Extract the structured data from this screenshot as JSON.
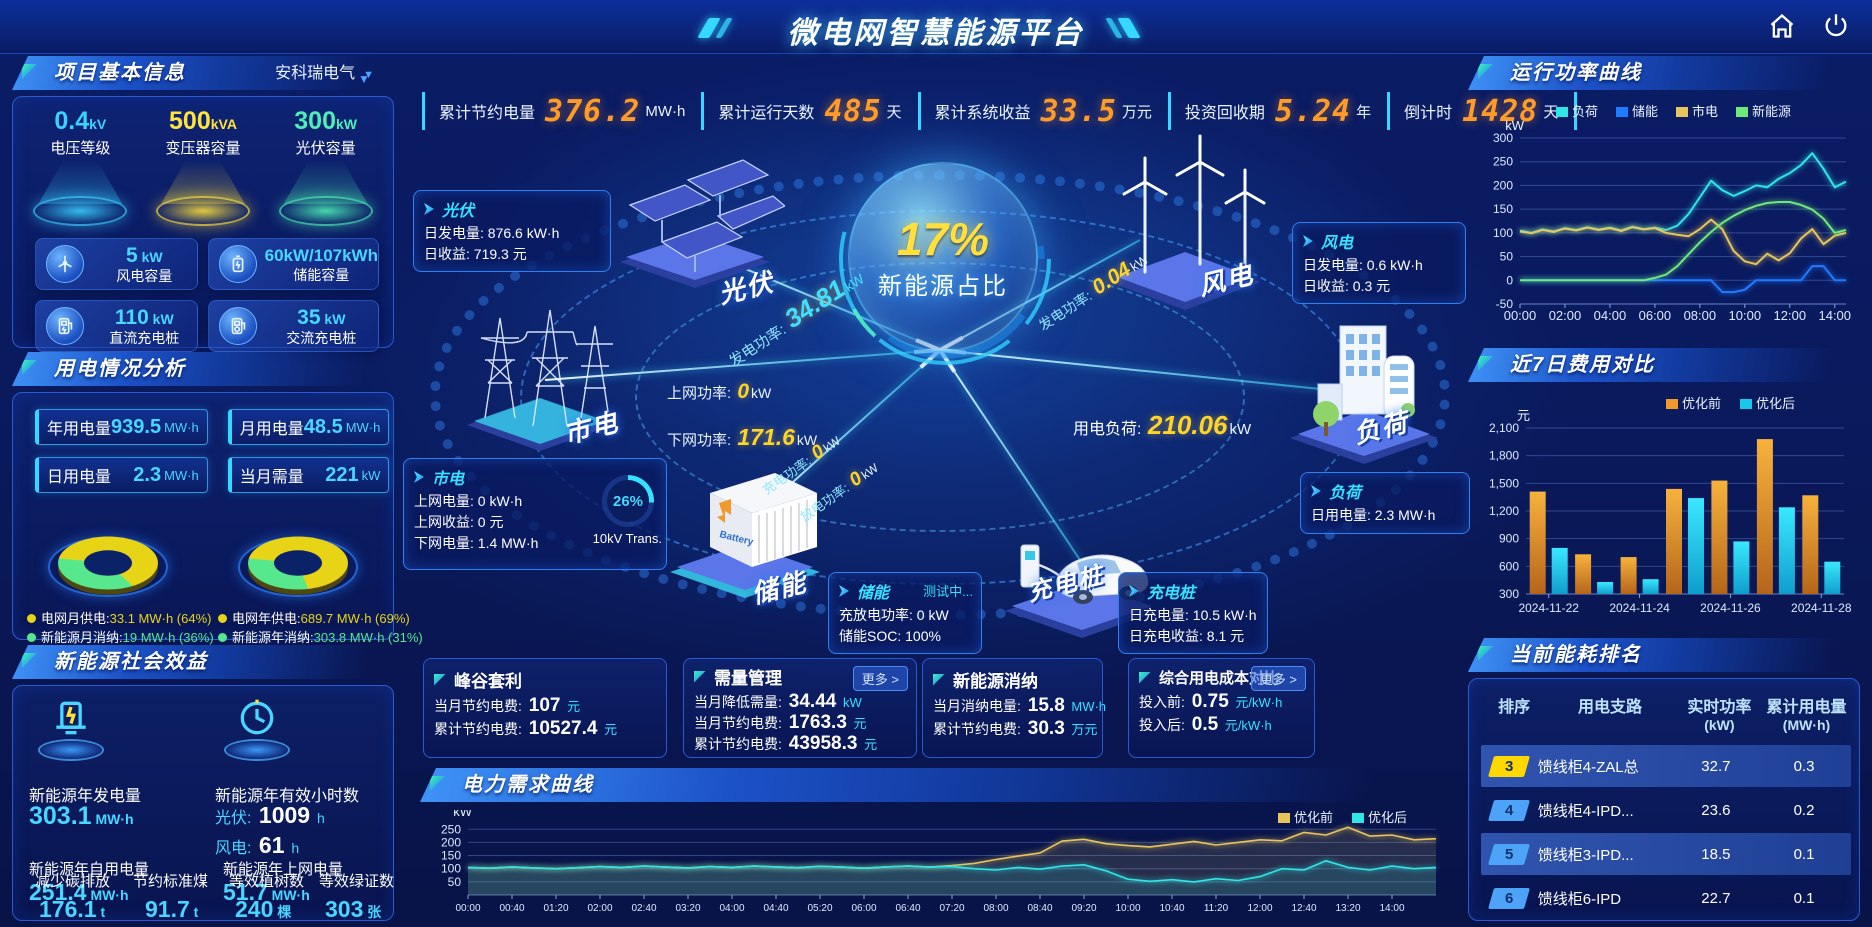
{
  "colors": {
    "accent_cyan": "#35e1ff",
    "value_cyan": "#49d6ff",
    "orange": "#ff9b28",
    "yellow": "#ffd428",
    "green": "#57e88e",
    "blue": "#1f7bff"
  },
  "header": {
    "title": "微电网智慧能源平台",
    "icons": [
      "home-icon",
      "power-icon"
    ],
    "stats": [
      {
        "label": "累计节约电量",
        "value": "376.2",
        "unit": "MW·h"
      },
      {
        "label": "累计运行天数",
        "value": "485",
        "unit": "天"
      },
      {
        "label": "累计系统收益",
        "value": "33.5",
        "unit": "万元"
      },
      {
        "label": "投资回收期",
        "value": "5.24",
        "unit": "年"
      },
      {
        "label": "倒计时",
        "value": "1428",
        "unit": "天"
      }
    ]
  },
  "project": {
    "title": "项目基本信息",
    "company": "安科瑞电气",
    "pedestals": [
      {
        "value": "0.4",
        "unit": "kV",
        "label": "电压等级",
        "color": "#3ad2ff"
      },
      {
        "value": "500",
        "unit": "kVA",
        "label": "变压器容量",
        "color": "#ffe23c"
      },
      {
        "value": "300",
        "unit": "kW",
        "label": "光伏容量",
        "color": "#4df0b6"
      }
    ],
    "cards": [
      {
        "icon": "wind-turbine-icon",
        "value": "5",
        "unit": "kW",
        "label": "风电容量"
      },
      {
        "icon": "battery-icon",
        "value": "60kW/107kWh",
        "unit": "",
        "label": "储能容量"
      },
      {
        "icon": "dc-charger-icon",
        "value": "110",
        "unit": "kW",
        "label": "直流充电桩"
      },
      {
        "icon": "ac-charger-icon",
        "value": "35",
        "unit": "kW",
        "label": "交流充电桩"
      }
    ]
  },
  "usage": {
    "title": "用电情况分析",
    "stats": [
      {
        "label": "年用电量",
        "value": "939.5",
        "unit": "MW·h"
      },
      {
        "label": "月用电量",
        "value": "48.5",
        "unit": "MW·h"
      },
      {
        "label": "日用电量",
        "value": "2.3",
        "unit": "MW·h"
      },
      {
        "label": "当月需量",
        "value": "221",
        "unit": "kW"
      }
    ],
    "donuts": [
      {
        "slices": [
          64,
          36
        ],
        "colors": [
          "#e8d416",
          "#57e88e"
        ],
        "legend": [
          {
            "label": "电网月供电:",
            "value": "33.1 MW·h (64%)",
            "color": "#e8d416"
          },
          {
            "label": "新能源月消纳:",
            "value": "19 MW·h (36%)",
            "color": "#57e88e"
          }
        ]
      },
      {
        "slices": [
          69,
          31
        ],
        "colors": [
          "#e8d416",
          "#57e88e"
        ],
        "legend": [
          {
            "label": "电网年供电:",
            "value": "689.7 MW·h (69%)",
            "color": "#e8d416"
          },
          {
            "label": "新能源年消纳:",
            "value": "303.8 MW·h (31%)",
            "color": "#57e88e"
          }
        ]
      }
    ]
  },
  "benefit": {
    "title": "新能源社会效益",
    "top_items": [
      {
        "icon": "pv-generation-icon",
        "label": "新能源年发电量",
        "value": "303.1",
        "unit": "MW·h"
      },
      {
        "icon": "hours-clock-icon",
        "label": "新能源年有效小时数",
        "rows": [
          {
            "k": "光伏:",
            "v": "1009",
            "u": "h"
          },
          {
            "k": "风电:",
            "v": "61",
            "u": "h"
          }
        ]
      }
    ],
    "bottom_items": [
      {
        "label": "新能源年自用电量",
        "value": "251.4",
        "unit": "MW·h"
      },
      {
        "label": "减少碳排放",
        "value": "176.1",
        "unit": "t"
      },
      {
        "label": "节约标准煤",
        "value": "91.7",
        "unit": "t"
      },
      {
        "label": "新能源年上网电量",
        "value": "51.7",
        "unit": "MW·h"
      },
      {
        "label": "等效植树数",
        "value": "240",
        "unit": "棵"
      },
      {
        "label": "等效绿证数",
        "value": "303",
        "unit": "张"
      }
    ]
  },
  "diagram": {
    "center": {
      "percent": "17%",
      "label": "新能源占比"
    },
    "nodes": [
      {
        "id": "pv",
        "label": "光伏"
      },
      {
        "id": "wind",
        "label": "风电"
      },
      {
        "id": "grid",
        "label": "市电"
      },
      {
        "id": "load",
        "label": "负荷"
      },
      {
        "id": "storage",
        "label": "储能"
      },
      {
        "id": "charger",
        "label": "充电桩"
      }
    ],
    "info_boxes": [
      {
        "id": "pv",
        "title": "光伏",
        "rows": [
          [
            "日发电量:",
            "876.6 kW·h"
          ],
          [
            "日收益:",
            "719.3 元"
          ]
        ]
      },
      {
        "id": "wind",
        "title": "风电",
        "rows": [
          [
            "日发电量:",
            "0.6 kW·h"
          ],
          [
            "日收益:",
            "0.3 元"
          ]
        ]
      },
      {
        "id": "grid",
        "title": "市电",
        "rows": [
          [
            "上网电量:",
            "0 kW·h"
          ],
          [
            "上网收益:",
            "0 元"
          ],
          [
            "下网电量:",
            "1.4 MW·h"
          ]
        ],
        "gauge": {
          "percent": "26%",
          "label": "10kV Trans."
        }
      },
      {
        "id": "load",
        "title": "负荷",
        "rows": [
          [
            "日用电量:",
            "2.3 MW·h"
          ]
        ]
      },
      {
        "id": "storage",
        "title": "储能",
        "badge": "测试中...",
        "rows": [
          [
            "充放电功率:",
            "0 kW"
          ],
          [
            "储能SOC:",
            "100%"
          ]
        ]
      },
      {
        "id": "charger",
        "title": "充电桩",
        "rows": [
          [
            "日充电量:",
            "10.5 kW·h"
          ],
          [
            "日充电收益:",
            "8.1 元"
          ]
        ]
      }
    ],
    "flow_labels": [
      {
        "label": "发电功率:",
        "value": "34.81",
        "unit": "kW"
      },
      {
        "label": "发电功率:",
        "value": "0.04",
        "unit": "kW"
      },
      {
        "label": "上网功率:",
        "value": "0",
        "unit": "kW"
      },
      {
        "label": "下网功率:",
        "value": "171.6",
        "unit": "kW"
      },
      {
        "label": "用电负荷:",
        "value": "210.06",
        "unit": "kW"
      },
      {
        "label": "充电功率:",
        "value": "0",
        "unit": "kW"
      },
      {
        "label": "放电功率:",
        "value": "0",
        "unit": "kW"
      }
    ]
  },
  "kpi_panels": [
    {
      "title": "峰谷套利",
      "more": "",
      "rows": [
        [
          "当月节约电费:",
          "107",
          "元"
        ],
        [
          "累计节约电费:",
          "10527.4",
          "元"
        ]
      ]
    },
    {
      "title": "需量管理",
      "more": "更多 >",
      "rows": [
        [
          "当月降低需量:",
          "34.44",
          "kW"
        ],
        [
          "当月节约电费:",
          "1763.3",
          "元"
        ],
        [
          "累计节约电费:",
          "43958.3",
          "元"
        ]
      ]
    },
    {
      "title": "新能源消纳",
      "more": "",
      "rows": [
        [
          "当月消纳电量:",
          "15.8",
          "MW·h"
        ],
        [
          "累计节约电费:",
          "30.3",
          "万元"
        ]
      ]
    },
    {
      "title": "综合用电成本对比",
      "more": "更多 >",
      "rows": [
        [
          "投入前:",
          "0.75",
          "元/kW·h"
        ],
        [
          "投入后:",
          "0.5",
          "元/kW·h"
        ]
      ]
    }
  ],
  "ranking": {
    "title": "当前能耗排名",
    "columns": [
      {
        "t": "排序",
        "s": ""
      },
      {
        "t": "用电支路",
        "s": ""
      },
      {
        "t": "实时功率",
        "s": "(kW)"
      },
      {
        "t": "累计用电量",
        "s": "(MW·h)"
      }
    ],
    "rows": [
      {
        "rank": "3",
        "badge_color": "#ffd800",
        "branch": "馈线柜4-ZAL总",
        "power": "32.7",
        "energy": "0.3",
        "highlight": true
      },
      {
        "rank": "4",
        "badge_color": "#4da3f8",
        "branch": "馈线柜4-IPD...",
        "power": "23.6",
        "energy": "0.2",
        "highlight": false
      },
      {
        "rank": "5",
        "badge_color": "#4da3f8",
        "branch": "馈线柜3-IPD...",
        "power": "18.5",
        "energy": "0.1",
        "highlight": true
      },
      {
        "rank": "6",
        "badge_color": "#4da3f8",
        "branch": "馈线柜6-IPD",
        "power": "22.7",
        "energy": "0.1",
        "highlight": false
      }
    ]
  },
  "chart_data": [
    {
      "id": "power-curve",
      "type": "line",
      "title": "运行功率曲线",
      "ylabel": "kW",
      "ylim": [
        -50,
        300
      ],
      "yticks": [
        -50,
        0,
        50,
        100,
        150,
        200,
        250,
        300
      ],
      "x_step_minutes": 30,
      "xtick_every": 4,
      "xticks": [
        "00:00",
        "02:00",
        "04:00",
        "06:00",
        "08:00",
        "10:00",
        "12:00",
        "14:00"
      ],
      "legend_position": "top",
      "series": [
        {
          "name": "负荷",
          "color": "#2ee6e6",
          "values": [
            105,
            100,
            107,
            103,
            110,
            106,
            112,
            107,
            111,
            105,
            113,
            108,
            111,
            106,
            115,
            140,
            175,
            210,
            190,
            178,
            188,
            200,
            196,
            214,
            226,
            243,
            268,
            235,
            196,
            208
          ]
        },
        {
          "name": "储能",
          "color": "#1f7bff",
          "values": [
            0,
            0,
            0,
            0,
            0,
            0,
            0,
            0,
            0,
            0,
            0,
            0,
            0,
            0,
            0,
            0,
            0,
            0,
            -25,
            -25,
            -20,
            0,
            0,
            0,
            0,
            0,
            30,
            30,
            0,
            0
          ]
        },
        {
          "name": "市电",
          "color": "#e8c55a",
          "values": [
            103,
            99,
            106,
            102,
            109,
            105,
            111,
            106,
            110,
            104,
            112,
            107,
            110,
            100,
            96,
            93,
            108,
            128,
            108,
            62,
            40,
            34,
            56,
            42,
            57,
            88,
            108,
            76,
            94,
            100
          ]
        },
        {
          "name": "新能源",
          "color": "#6fe87a",
          "values": [
            0,
            0,
            0,
            0,
            0,
            0,
            0,
            0,
            0,
            0,
            0,
            0,
            5,
            12,
            30,
            55,
            80,
            102,
            121,
            136,
            148,
            157,
            163,
            165,
            165,
            159,
            149,
            130,
            100,
            106
          ]
        }
      ]
    },
    {
      "id": "cost-compare",
      "type": "bar",
      "title": "近7日费用对比",
      "ylabel": "元",
      "ylim": [
        300,
        2100
      ],
      "yticks": [
        300,
        600,
        900,
        1200,
        1500,
        1800,
        2100
      ],
      "categories": [
        "2024-11-22",
        "2024-11-23",
        "2024-11-24",
        "2024-11-25",
        "2024-11-26",
        "2024-11-27",
        "2024-11-28"
      ],
      "xtick_indices": [
        0,
        2,
        4,
        6
      ],
      "legend_position": "top",
      "series": [
        {
          "name": "优化前",
          "color": "#f09a2c",
          "values": [
            1410,
            730,
            700,
            1440,
            1530,
            1980,
            1370
          ]
        },
        {
          "name": "优化后",
          "color": "#19c8e8",
          "values": [
            800,
            430,
            460,
            1340,
            870,
            1240,
            650
          ]
        }
      ]
    },
    {
      "id": "demand-curve",
      "type": "line",
      "title": "电力需求曲线",
      "ylabel": "kW",
      "ylim": [
        0,
        270
      ],
      "yticks": [
        50,
        100,
        150,
        200,
        250
      ],
      "x_step_minutes": 20,
      "xtick_every": 2,
      "xticks": [
        "00:00",
        "00:40",
        "01:20",
        "02:00",
        "02:40",
        "03:20",
        "04:00",
        "04:40",
        "05:20",
        "06:00",
        "06:40",
        "07:20",
        "08:00",
        "08:40",
        "09:20",
        "10:00",
        "10:40",
        "11:20",
        "12:00",
        "12:40",
        "13:20",
        "14:00"
      ],
      "legend_position": "top-right",
      "series": [
        {
          "name": "优化前",
          "color": "#e8c55a",
          "values": [
            105,
            102,
            107,
            103,
            100,
            104,
            108,
            105,
            110,
            106,
            103,
            108,
            105,
            110,
            107,
            104,
            109,
            106,
            102,
            107,
            110,
            106,
            112,
            120,
            135,
            148,
            160,
            205,
            212,
            195,
            188,
            183,
            193,
            204,
            190,
            200,
            210,
            206,
            238,
            228,
            258,
            224,
            228,
            210,
            214
          ]
        },
        {
          "name": "优化后",
          "color": "#2ee6e6",
          "values": [
            105,
            102,
            107,
            103,
            100,
            104,
            108,
            105,
            110,
            106,
            103,
            108,
            105,
            110,
            107,
            104,
            109,
            106,
            102,
            107,
            110,
            106,
            108,
            100,
            95,
            105,
            98,
            110,
            115,
            92,
            60,
            52,
            58,
            50,
            62,
            55,
            70,
            100,
            95,
            130,
            105,
            95,
            110,
            100,
            105
          ]
        }
      ]
    }
  ]
}
